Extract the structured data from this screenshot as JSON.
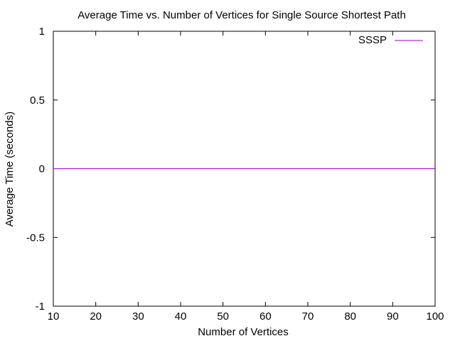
{
  "chart_data": {
    "type": "line",
    "title": "Average Time vs. Number of Vertices for Single Source Shortest Path",
    "xlabel": "Number of Vertices",
    "ylabel": "Average Time (seconds)",
    "xlim": [
      10,
      100
    ],
    "ylim": [
      -1,
      1
    ],
    "xticks": [
      10,
      20,
      30,
      40,
      50,
      60,
      70,
      80,
      90,
      100
    ],
    "yticks": [
      1,
      0.5,
      0,
      -0.5,
      -1
    ],
    "ytick_labels": [
      "1",
      "0.5",
      "0",
      "-0.5",
      "-1"
    ],
    "grid": false,
    "legend_position": "top-right",
    "series": [
      {
        "name": "SSSP",
        "color": "#9400d3",
        "x": [
          10,
          20,
          30,
          40,
          50,
          60,
          70,
          80,
          90,
          100
        ],
        "y": [
          0,
          0,
          0,
          0,
          0,
          0,
          0,
          0,
          0,
          0
        ]
      }
    ]
  }
}
